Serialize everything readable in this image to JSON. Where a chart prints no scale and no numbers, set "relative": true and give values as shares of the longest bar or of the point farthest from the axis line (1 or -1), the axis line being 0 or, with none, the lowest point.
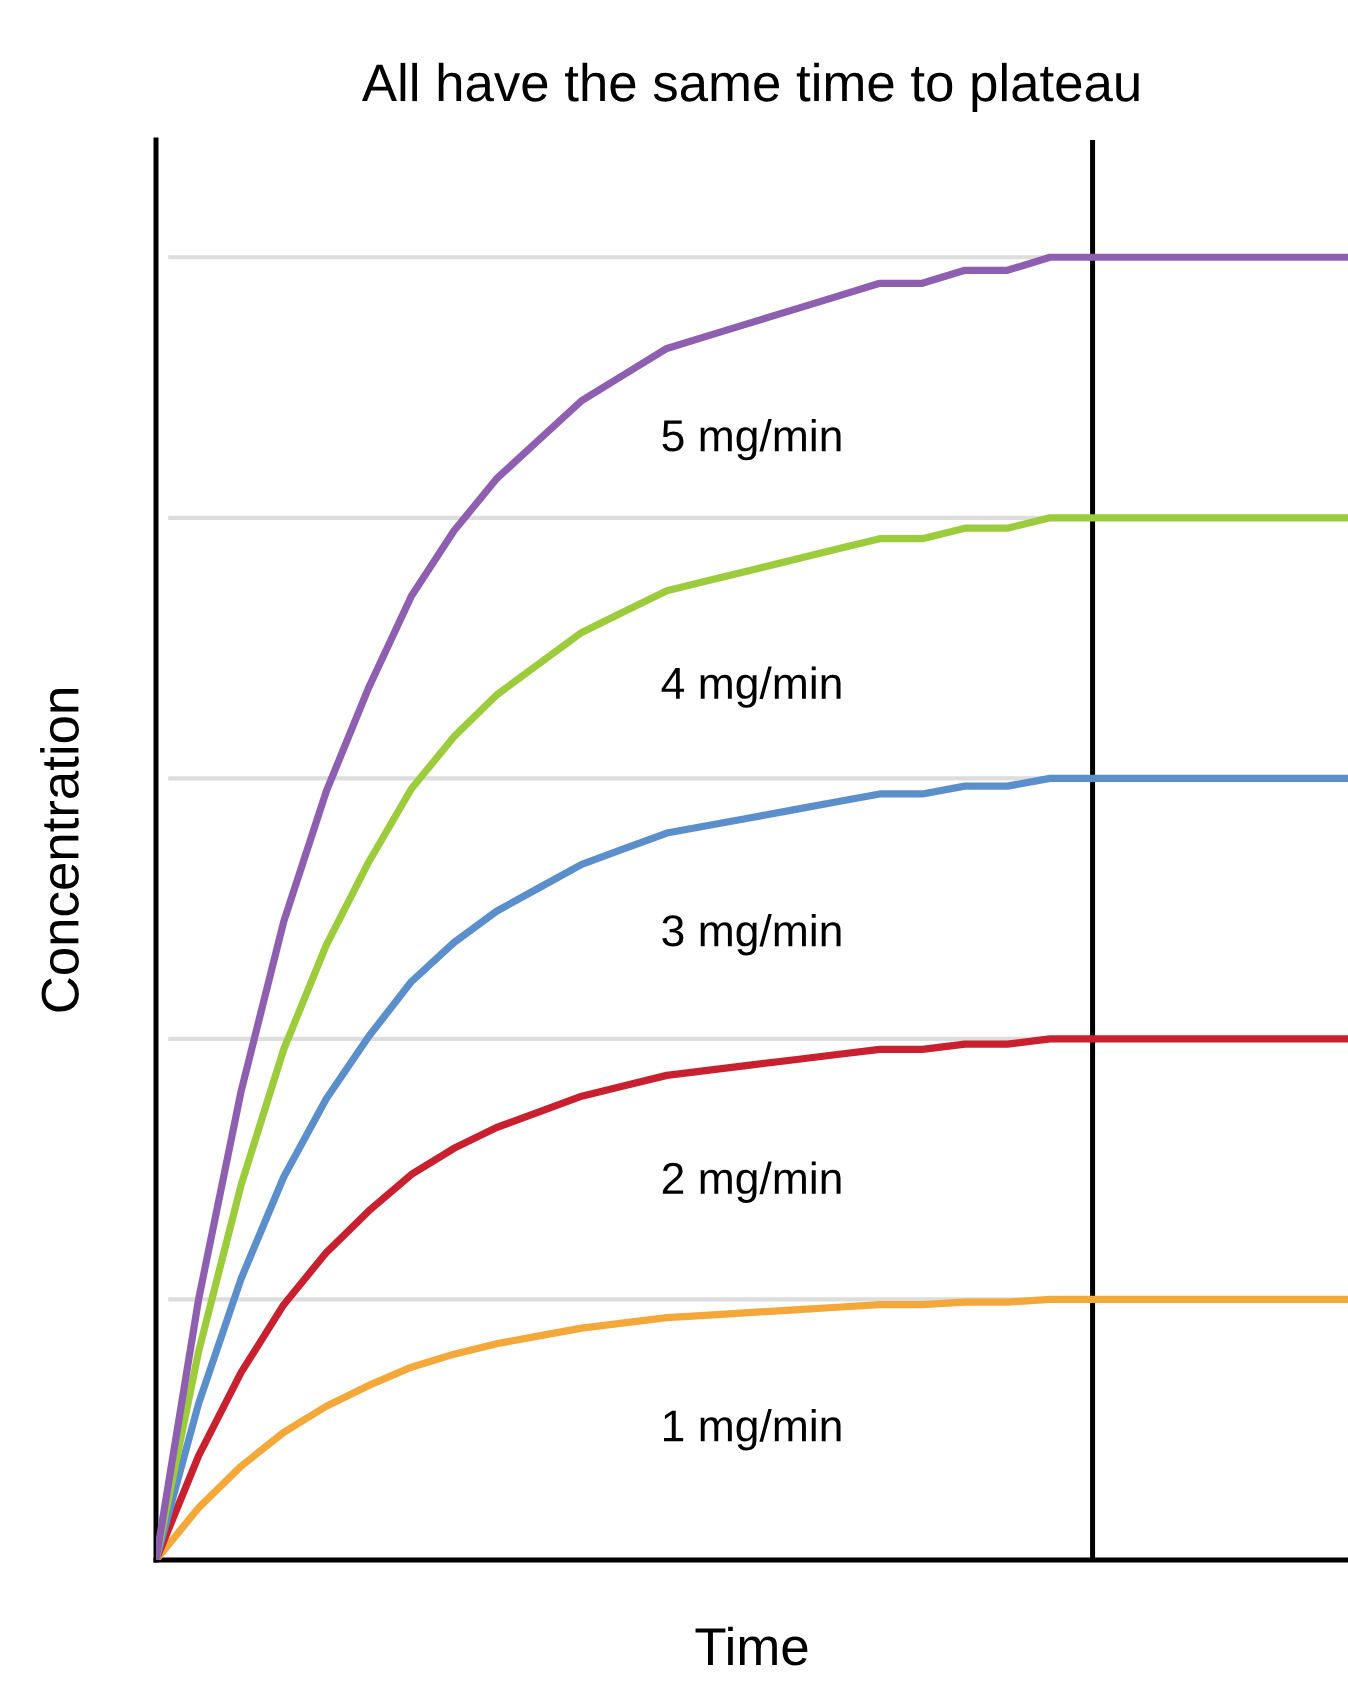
{
  "chart_data": {
    "type": "line",
    "title": "All have the same time to plateau",
    "xlabel": "Time",
    "ylabel": "Concentration",
    "relative": true,
    "categories": [
      null,
      null,
      null,
      null,
      null,
      null,
      null,
      null,
      null,
      null,
      null,
      null,
      null,
      null,
      null,
      null,
      null,
      null,
      null,
      null,
      null,
      null,
      null,
      null,
      null,
      null,
      null,
      null,
      null
    ],
    "series": [
      {
        "name": "1 mg/min",
        "color": "#f5a83a",
        "values": [
          0,
          0.04,
          0.072,
          0.098,
          0.118,
          0.134,
          0.148,
          0.158,
          0.166,
          0.172,
          0.178,
          0.182,
          0.186,
          0.188,
          0.19,
          0.192,
          0.194,
          0.196,
          0.196,
          0.198,
          0.198,
          0.2,
          0.2,
          0.2,
          0.2,
          0.2,
          0.2,
          0.2,
          0.2
        ]
      },
      {
        "name": "2 mg/min",
        "color": "#c8202f",
        "values": [
          0,
          0.08,
          0.144,
          0.196,
          0.236,
          0.268,
          0.296,
          0.316,
          0.332,
          0.344,
          0.356,
          0.364,
          0.372,
          0.376,
          0.38,
          0.384,
          0.388,
          0.392,
          0.392,
          0.396,
          0.396,
          0.4,
          0.4,
          0.4,
          0.4,
          0.4,
          0.4,
          0.4,
          0.4
        ]
      },
      {
        "name": "3 mg/min",
        "color": "#5b8fcc",
        "values": [
          0,
          0.12,
          0.216,
          0.294,
          0.354,
          0.402,
          0.444,
          0.474,
          0.498,
          0.516,
          0.534,
          0.546,
          0.558,
          0.564,
          0.57,
          0.576,
          0.582,
          0.588,
          0.588,
          0.594,
          0.594,
          0.6,
          0.6,
          0.6,
          0.6,
          0.6,
          0.6,
          0.6,
          0.6
        ]
      },
      {
        "name": "4 mg/min",
        "color": "#9ccb3b",
        "values": [
          0,
          0.16,
          0.288,
          0.392,
          0.472,
          0.536,
          0.592,
          0.632,
          0.664,
          0.688,
          0.712,
          0.728,
          0.744,
          0.752,
          0.76,
          0.768,
          0.776,
          0.784,
          0.784,
          0.792,
          0.792,
          0.8,
          0.8,
          0.8,
          0.8,
          0.8,
          0.8,
          0.8,
          0.8
        ]
      },
      {
        "name": "5 mg/min",
        "color": "#8e5fb0",
        "values": [
          0,
          0.2,
          0.36,
          0.49,
          0.59,
          0.67,
          0.74,
          0.79,
          0.83,
          0.86,
          0.89,
          0.91,
          0.93,
          0.94,
          0.95,
          0.96,
          0.97,
          0.98,
          0.98,
          0.99,
          0.99,
          1,
          1,
          1,
          1,
          1,
          1,
          1,
          1
        ]
      }
    ],
    "ref_lines": [
      {
        "axis": "y",
        "value": 0.2,
        "color": "#dddddd"
      },
      {
        "axis": "y",
        "value": 0.4,
        "color": "#dddddd"
      },
      {
        "axis": "y",
        "value": 0.6,
        "color": "#dddddd"
      },
      {
        "axis": "y",
        "value": 0.8,
        "color": "#dddddd"
      },
      {
        "axis": "y",
        "value": 1,
        "color": "#dddddd"
      }
    ],
    "legend": false,
    "line_style": "solid",
    "marker": "none"
  }
}
